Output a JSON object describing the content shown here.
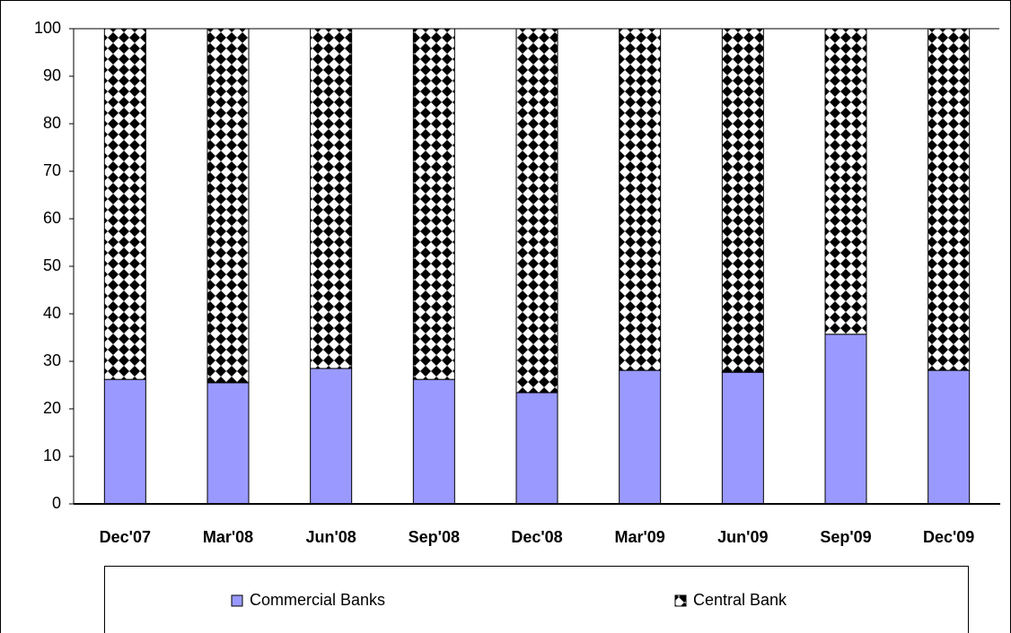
{
  "chart_data": {
    "type": "stacked-bar",
    "categories": [
      "Dec'07",
      "Mar'08",
      "Jun'08",
      "Sep'08",
      "Dec'08",
      "Mar'09",
      "Jun'09",
      "Sep'09",
      "Dec'09"
    ],
    "series": [
      {
        "name": "Commercial Banks",
        "color": "#9999ff",
        "values": [
          26.2,
          25.5,
          28.5,
          26.2,
          23.4,
          28.1,
          27.7,
          35.7,
          28.1
        ]
      },
      {
        "name": "Central Bank",
        "color": "#000000",
        "values": [
          73.8,
          74.5,
          71.5,
          73.8,
          76.6,
          71.9,
          72.3,
          64.3,
          71.9
        ]
      }
    ],
    "ylim": [
      0,
      100
    ],
    "yticks": [
      0,
      10,
      20,
      30,
      40,
      50,
      60,
      70,
      80,
      90,
      100
    ],
    "grid": false
  }
}
